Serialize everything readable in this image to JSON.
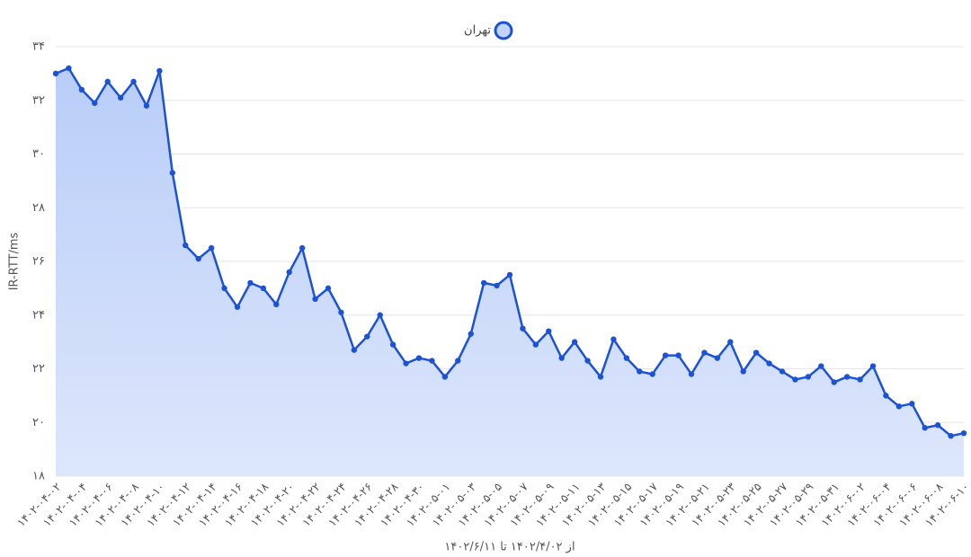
{
  "chart_data": {
    "type": "area",
    "ylabel": "IR-RTT/ms",
    "xlabel": "از ۱۴۰۲/۴/۰۲ تا ۱۴۰۲/۶/۱۱",
    "categories": [
      "۱۴۰۲-۰۴-۰۲",
      null,
      "۱۴۰۲-۰۴-۰۴",
      null,
      "۱۴۰۲-۰۴-۰۶",
      null,
      "۱۴۰۲-۰۴-۰۸",
      null,
      "۱۴۰۲-۰۴-۱۰",
      null,
      "۱۴۰۲-۰۴-۱۲",
      null,
      "۱۴۰۲-۰۴-۱۴",
      null,
      "۱۴۰۲-۰۴-۱۶",
      null,
      "۱۴۰۲-۰۴-۱۸",
      null,
      "۱۴۰۲-۰۴-۲۰",
      null,
      "۱۴۰۲-۰۴-۲۲",
      null,
      "۱۴۰۲-۰۴-۲۴",
      null,
      "۱۴۰۲-۰۴-۲۶",
      null,
      "۱۴۰۲-۰۴-۲۸",
      null,
      "۱۴۰۲-۰۴-۳۰",
      null,
      "۱۴۰۲-۰۵-۰۱",
      null,
      "۱۴۰۲-۰۵-۰۳",
      null,
      "۱۴۰۲-۰۵-۰۵",
      null,
      "۱۴۰۲-۰۵-۰۷",
      null,
      "۱۴۰۲-۰۵-۰۹",
      null,
      "۱۴۰۲-۰۵-۱۱",
      null,
      "۱۴۰۲-۰۵-۱۳",
      null,
      "۱۴۰۲-۰۵-۱۵",
      null,
      "۱۴۰۲-۰۵-۱۷",
      null,
      "۱۴۰۲-۰۵-۱۹",
      null,
      "۱۴۰۲-۰۵-۲۱",
      null,
      "۱۴۰۲-۰۵-۲۳",
      null,
      "۱۴۰۲-۰۵-۲۵",
      null,
      "۱۴۰۲-۰۵-۲۷",
      null,
      "۱۴۰۲-۰۵-۲۹",
      null,
      "۱۴۰۲-۰۵-۳۱",
      null,
      "۱۴۰۲-۰۶-۰۲",
      null,
      "۱۴۰۲-۰۶-۰۴",
      null,
      "۱۴۰۲-۰۶-۰۶",
      null,
      "۱۴۰۲-۰۶-۰۸",
      null,
      "۱۴۰۲-۰۶-۱۰"
    ],
    "series": [
      {
        "name": "تهران",
        "color": "#1c52d6",
        "fill": "#c3d4f8",
        "values": [
          33.0,
          33.2,
          32.4,
          31.9,
          32.7,
          32.1,
          32.7,
          31.8,
          33.1,
          29.3,
          26.6,
          26.1,
          26.5,
          25.0,
          24.3,
          25.2,
          25.0,
          24.4,
          25.6,
          26.5,
          24.6,
          25.0,
          24.1,
          22.7,
          23.2,
          24.0,
          22.9,
          22.2,
          22.4,
          22.3,
          21.7,
          22.3,
          23.3,
          25.2,
          25.1,
          25.5,
          23.5,
          22.9,
          23.4,
          22.4,
          23.0,
          22.3,
          21.7,
          23.1,
          22.4,
          21.9,
          21.8,
          22.5,
          22.5,
          21.8,
          22.6,
          22.4,
          23.0,
          21.9,
          22.6,
          22.2,
          21.9,
          21.6,
          21.7,
          22.1,
          21.5,
          21.7,
          21.6,
          22.1,
          21.0,
          20.6,
          20.7,
          19.8,
          19.9,
          19.5,
          19.6
        ]
      }
    ],
    "ylim": [
      18,
      34
    ],
    "yticks": [
      {
        "value": 18,
        "label": "۱۸"
      },
      {
        "value": 20,
        "label": "۲۰"
      },
      {
        "value": 22,
        "label": "۲۲"
      },
      {
        "value": 24,
        "label": "۲۴"
      },
      {
        "value": 26,
        "label": "۲۶"
      },
      {
        "value": 28,
        "label": "۲۸"
      },
      {
        "value": 30,
        "label": "۳۰"
      },
      {
        "value": 32,
        "label": "۳۲"
      },
      {
        "value": 34,
        "label": "۳۴"
      }
    ],
    "grid": true,
    "legend": "top"
  }
}
